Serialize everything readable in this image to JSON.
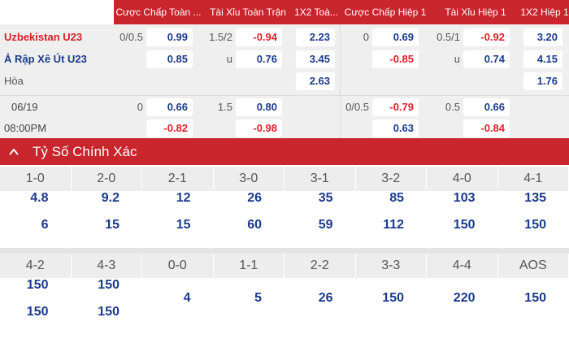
{
  "odds_header": [
    "Cược Chấp Toàn ...",
    "Tài Xỉu Toàn Trận",
    "1X2 Toà...",
    "Cược Chấp Hiệp 1",
    "Tài Xỉu Hiệp 1",
    "1X2 Hiệp 1"
  ],
  "match": {
    "home": "Uzbekistan U23",
    "away": "Ả Rập Xê Út U23",
    "draw": "Hòa",
    "date": "06/19",
    "time": "08:00PM"
  },
  "main_line": {
    "ft_handicap": {
      "line": "0/0.5",
      "home": "0.99",
      "away": "0.85"
    },
    "ft_total": {
      "line": "1.5/2",
      "over": "-0.94",
      "under_label": "u",
      "under": "0.76"
    },
    "ft_1x2": {
      "home": "2.23",
      "away": "3.45",
      "draw": "2.63"
    },
    "h1_handicap": {
      "line": "0",
      "home": "0.69",
      "away": "-0.85"
    },
    "h1_total": {
      "line": "0.5/1",
      "over": "-0.92",
      "under_label": "u",
      "under": "0.74"
    },
    "h1_1x2": {
      "home": "3.20",
      "away": "4.15",
      "draw": "1.76"
    }
  },
  "second_line": {
    "ft_handicap": {
      "line": "0",
      "home": "0.66",
      "away": "-0.82"
    },
    "ft_total": {
      "line": "1.5",
      "over": "0.80",
      "under": "-0.98"
    },
    "h1_handicap": {
      "line": "0/0.5",
      "home": "-0.79",
      "away": "0.63"
    },
    "h1_total": {
      "line": "0.5",
      "over": "0.66",
      "under": "-0.84"
    }
  },
  "correct_score": {
    "title": "Tỷ Số Chính Xác",
    "groups": [
      [
        {
          "score": "1-0",
          "odds": [
            "4.8",
            "6"
          ]
        },
        {
          "score": "2-0",
          "odds": [
            "9.2",
            "15"
          ]
        },
        {
          "score": "2-1",
          "odds": [
            "12",
            "15"
          ]
        },
        {
          "score": "3-0",
          "odds": [
            "26",
            "60"
          ]
        },
        {
          "score": "3-1",
          "odds": [
            "35",
            "59"
          ]
        },
        {
          "score": "3-2",
          "odds": [
            "85",
            "112"
          ]
        },
        {
          "score": "4-0",
          "odds": [
            "103",
            "150"
          ]
        },
        {
          "score": "4-1",
          "odds": [
            "135",
            "150"
          ]
        }
      ],
      [
        {
          "score": "4-2",
          "odds": [
            "150",
            "150"
          ]
        },
        {
          "score": "4-3",
          "odds": [
            "150",
            "150"
          ]
        },
        {
          "score": "0-0",
          "odds": [
            "4"
          ]
        },
        {
          "score": "1-1",
          "odds": [
            "5"
          ]
        },
        {
          "score": "2-2",
          "odds": [
            "26"
          ]
        },
        {
          "score": "3-3",
          "odds": [
            "150"
          ]
        },
        {
          "score": "4-4",
          "odds": [
            "220"
          ]
        },
        {
          "score": "AOS",
          "odds": [
            "150"
          ]
        }
      ]
    ]
  }
}
